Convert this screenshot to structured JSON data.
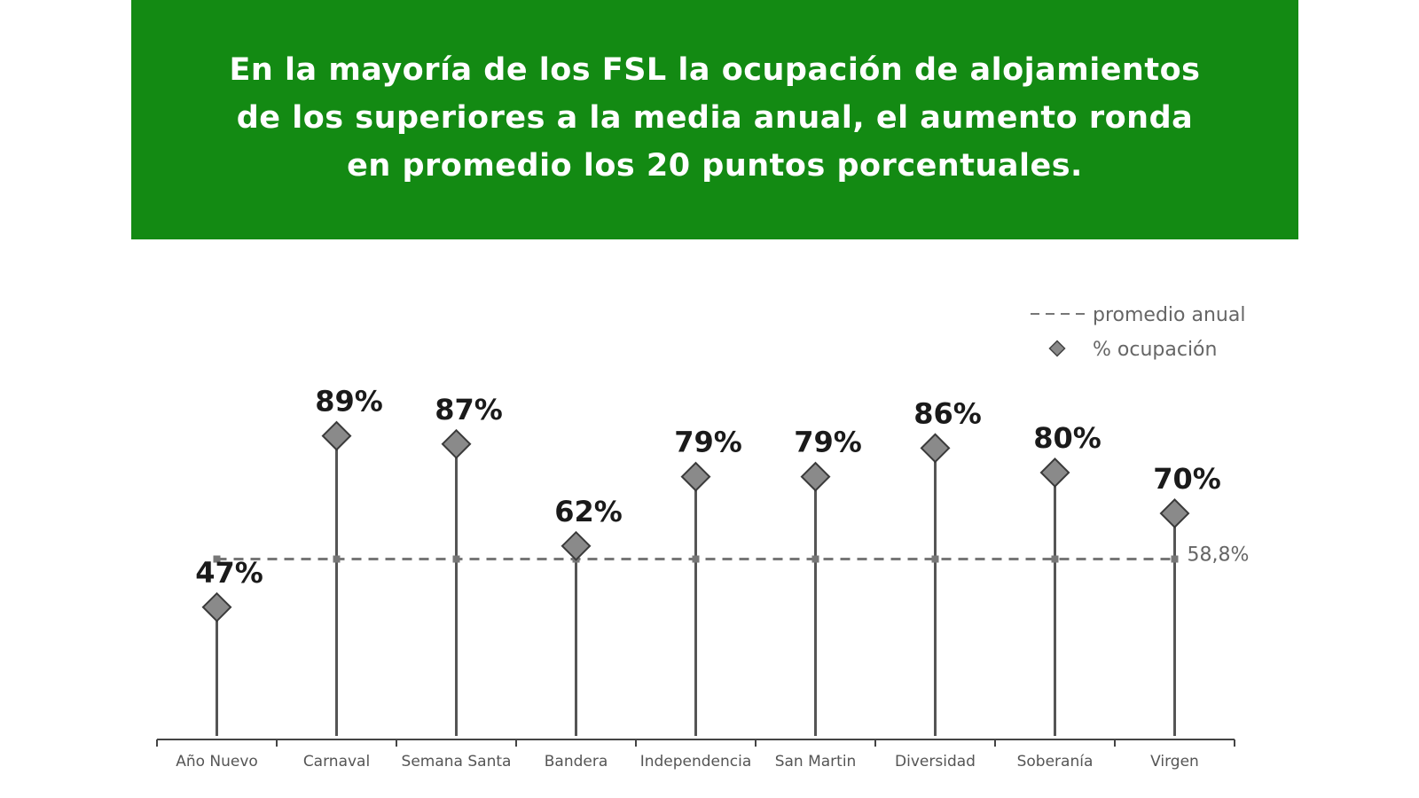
{
  "banner": {
    "lines": [
      "En la mayoría de los FSL la ocupación de alojamientos",
      "de los superiores a la media anual, el  aumento ronda",
      "en promedio  los 20  puntos porcentuales."
    ]
  },
  "chart_data": {
    "type": "scatter",
    "categories": [
      "Año Nuevo",
      "Carnaval",
      "Semana Santa",
      "Bandera",
      "Independencia",
      "San Martin",
      "Diversidad",
      "Soberanía",
      "Virgen"
    ],
    "series": [
      {
        "name": "% ocupación",
        "values": [
          47,
          89,
          87,
          62,
          79,
          79,
          86,
          80,
          70
        ],
        "value_labels": [
          "47%",
          "89%",
          "87%",
          "62%",
          "79%",
          "79%",
          "86%",
          "80%",
          "70%"
        ],
        "color": "#8a8a8a"
      },
      {
        "name": "promedio anual",
        "value": 58.8,
        "value_label": "58,8%",
        "color": "#777777"
      }
    ],
    "legend": {
      "position": "top-right"
    },
    "grid": false,
    "ylim": [
      0,
      100
    ]
  }
}
